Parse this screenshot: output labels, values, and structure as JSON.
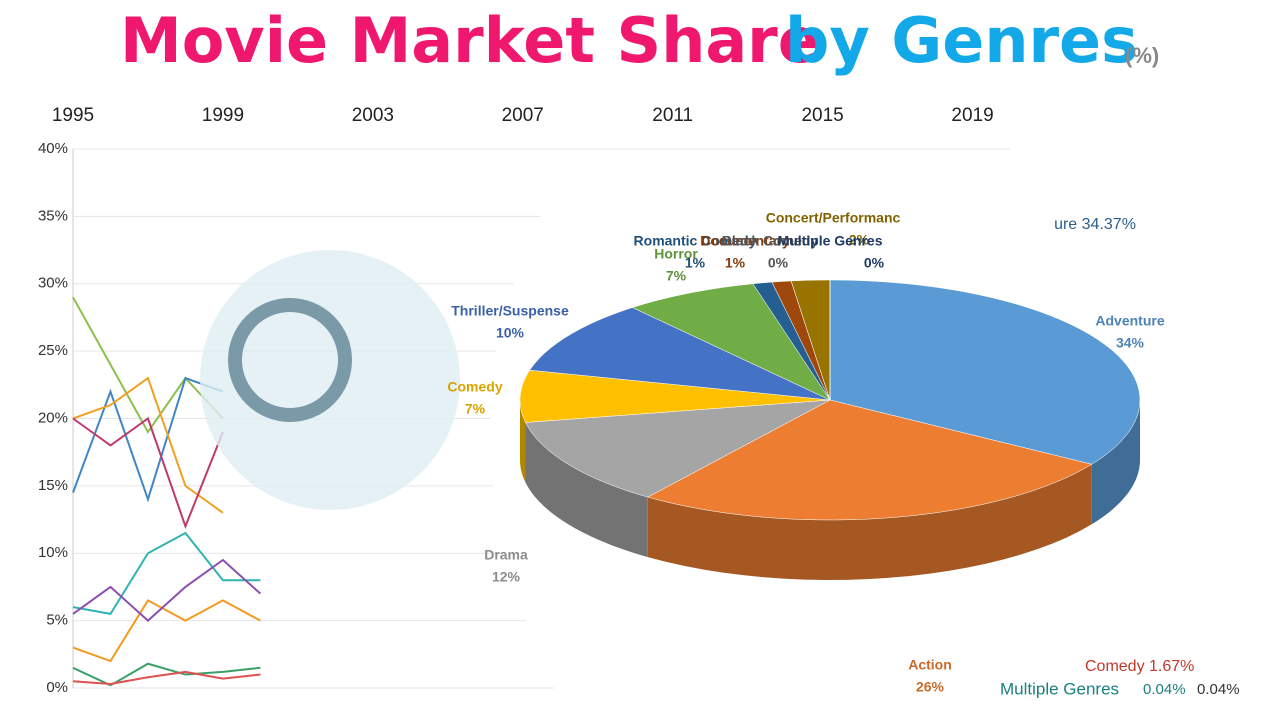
{
  "chart_data": [
    {
      "type": "line",
      "title": "Movie Market Share",
      "subtitle": "by Genres",
      "unit_note": "(%)",
      "x": [
        1995,
        1996,
        1997,
        1998,
        1999,
        2000
      ],
      "xlim": [
        1995,
        2020
      ],
      "xticks": [
        1995,
        1999,
        2003,
        2007,
        2011,
        2015,
        2019
      ],
      "ylim": [
        0,
        40
      ],
      "yticks": [
        {
          "value": 0,
          "label": "0%"
        },
        {
          "value": 5,
          "label": "5%"
        },
        {
          "value": 10,
          "label": "10%"
        },
        {
          "value": 15,
          "label": "15%"
        },
        {
          "value": 20,
          "label": "20%"
        },
        {
          "value": 25,
          "label": "25%"
        },
        {
          "value": 30,
          "label": "30%"
        },
        {
          "value": 35,
          "label": "35%"
        },
        {
          "value": 40,
          "label": "40%"
        }
      ],
      "grid": true,
      "series": [
        {
          "color": "#8cc04c",
          "values": [
            29,
            24,
            19,
            23,
            20,
            null
          ]
        },
        {
          "color": "#3f86c6",
          "values": [
            14.5,
            22,
            14,
            23,
            22,
            null
          ]
        },
        {
          "color": "#f0a020",
          "values": [
            20,
            21,
            23,
            15,
            13,
            null
          ]
        },
        {
          "color": "#c0396b",
          "values": [
            20,
            18,
            20,
            12,
            19,
            null
          ]
        },
        {
          "color": "#2fb4b4",
          "values": [
            6,
            5.5,
            10,
            11.5,
            8,
            8
          ]
        },
        {
          "color": "#f39a1e",
          "values": [
            3,
            2,
            6.5,
            5,
            6.5,
            5
          ]
        },
        {
          "color": "#8b4fb0",
          "values": [
            5.5,
            7.5,
            5,
            7.5,
            9.5,
            7
          ]
        },
        {
          "color": "#3aa06a",
          "values": [
            1.5,
            0.2,
            1.8,
            1,
            1.2,
            1.5
          ]
        },
        {
          "color": "#e05050",
          "values": [
            0.5,
            0.3,
            0.8,
            1.2,
            0.7,
            1
          ]
        }
      ]
    },
    {
      "type": "pie",
      "categories": [
        "Adventure",
        "Action",
        "Drama",
        "Comedy",
        "Thriller/Suspense",
        "Horror",
        "Romantic Comedy",
        "Documentary",
        "Black Comedy",
        "Concert/Performanc",
        "Multiple Genres"
      ],
      "values": [
        34,
        26,
        12,
        7,
        10,
        7,
        1,
        1,
        0,
        2,
        0
      ],
      "value_labels": [
        "34%",
        "26%",
        "12%",
        "7%",
        "10%",
        "7%",
        "1%",
        "1%",
        "0%",
        "2%",
        "0%"
      ],
      "colors": [
        "#5b9bd5",
        "#ed7d31",
        "#a5a5a5",
        "#ffc000",
        "#4472c4",
        "#70ad47",
        "#255e91",
        "#9e480e",
        "#636363",
        "#997300",
        "#264478"
      ],
      "annotations": [
        "ure 34.37%",
        "Comedy 1.67%",
        "Multiple Genres",
        "0.04%",
        "0.04%"
      ]
    }
  ]
}
